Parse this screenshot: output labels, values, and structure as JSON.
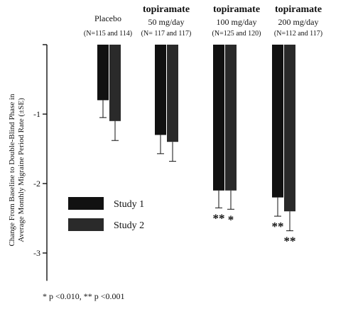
{
  "chart_data": {
    "type": "bar",
    "ylabel": "Change From Baseline to Double-Blind Phase in Average Monthly Migraine Period Rate (±SE)",
    "ylim": [
      -3.4,
      0
    ],
    "yticks": [
      "-1",
      "-2",
      "-3"
    ],
    "group_headers": [
      {
        "name": "Placebo",
        "dose": "",
        "n": "(N=115 and 114)"
      },
      {
        "name": "topiramate",
        "dose": "50 mg/day",
        "n": "(N= 117 and 117)"
      },
      {
        "name": "topiramate",
        "dose": "100 mg/day",
        "n": "(N=125 and 120)"
      },
      {
        "name": "topiramate",
        "dose": "200 mg/day",
        "n": "(N=112 and 117)"
      }
    ],
    "series": [
      {
        "name": "Study 1",
        "color": "#111111",
        "values": [
          -0.8,
          -1.3,
          -2.1,
          -2.2
        ],
        "errors": [
          0.25,
          0.27,
          0.25,
          0.27
        ],
        "significance": [
          "",
          "",
          "**",
          "**"
        ]
      },
      {
        "name": "Study 2",
        "color": "#2a2a2a",
        "values": [
          -1.1,
          -1.4,
          -2.1,
          -2.4
        ],
        "errors": [
          0.28,
          0.28,
          0.27,
          0.28
        ],
        "significance": [
          "",
          "",
          "*",
          "**"
        ]
      }
    ],
    "legend_position": "bottom-left",
    "grid": false
  },
  "footnote": "* p <0.010, ** p <0.001"
}
